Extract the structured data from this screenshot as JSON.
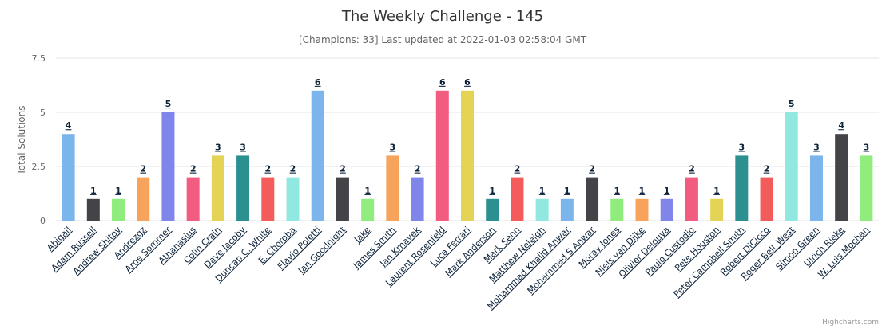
{
  "chart_data": {
    "type": "bar",
    "title": "The Weekly Challenge - 145",
    "subtitle": "[Champions: 33] Last updated at 2022-01-03 02:58:04 GMT",
    "xlabel": "",
    "ylabel": "Total Solutions",
    "ylim": [
      0,
      7.5
    ],
    "yticks": [
      "0",
      "2.5",
      "5",
      "7.5"
    ],
    "grid": true,
    "legend": "none",
    "categories": [
      "Abigail",
      "Adam Russell",
      "Andrew Shitov",
      "Andrezgz",
      "Arne Sommer",
      "Athanasius",
      "Colin Crain",
      "Dave Jacoby",
      "Duncan C. White",
      "E. Choroba",
      "Flavio Poletti",
      "Ian Goodnight",
      "Jake",
      "James Smith",
      "Jan Krnavek",
      "Laurent Rosenfeld",
      "Luca Ferrari",
      "Mark Anderson",
      "Mark Senn",
      "Matthew Neleigh",
      "Mohammad Khalid Anwar",
      "Mohammad S Anwar",
      "Moray Jones",
      "Niels van Dijke",
      "Olivier Delouya",
      "Paulo Custodio",
      "Pete Houston",
      "Peter Campbell Smith",
      "Robert DiCicco",
      "Roger Bell_West",
      "Simon Green",
      "Ulrich Rieke",
      "W. Luis Mochan"
    ],
    "values": [
      4,
      1,
      1,
      2,
      5,
      2,
      3,
      3,
      2,
      2,
      6,
      2,
      1,
      3,
      2,
      6,
      6,
      1,
      2,
      1,
      1,
      2,
      1,
      1,
      1,
      2,
      1,
      3,
      2,
      5,
      3,
      4,
      3
    ],
    "colors": [
      "#7cb5ec",
      "#434348",
      "#90ed7d",
      "#f7a35c",
      "#8085e9",
      "#f15c80",
      "#e4d354",
      "#2b908f",
      "#f45b5b",
      "#91e8e1"
    ],
    "credits": "Highcharts.com"
  }
}
